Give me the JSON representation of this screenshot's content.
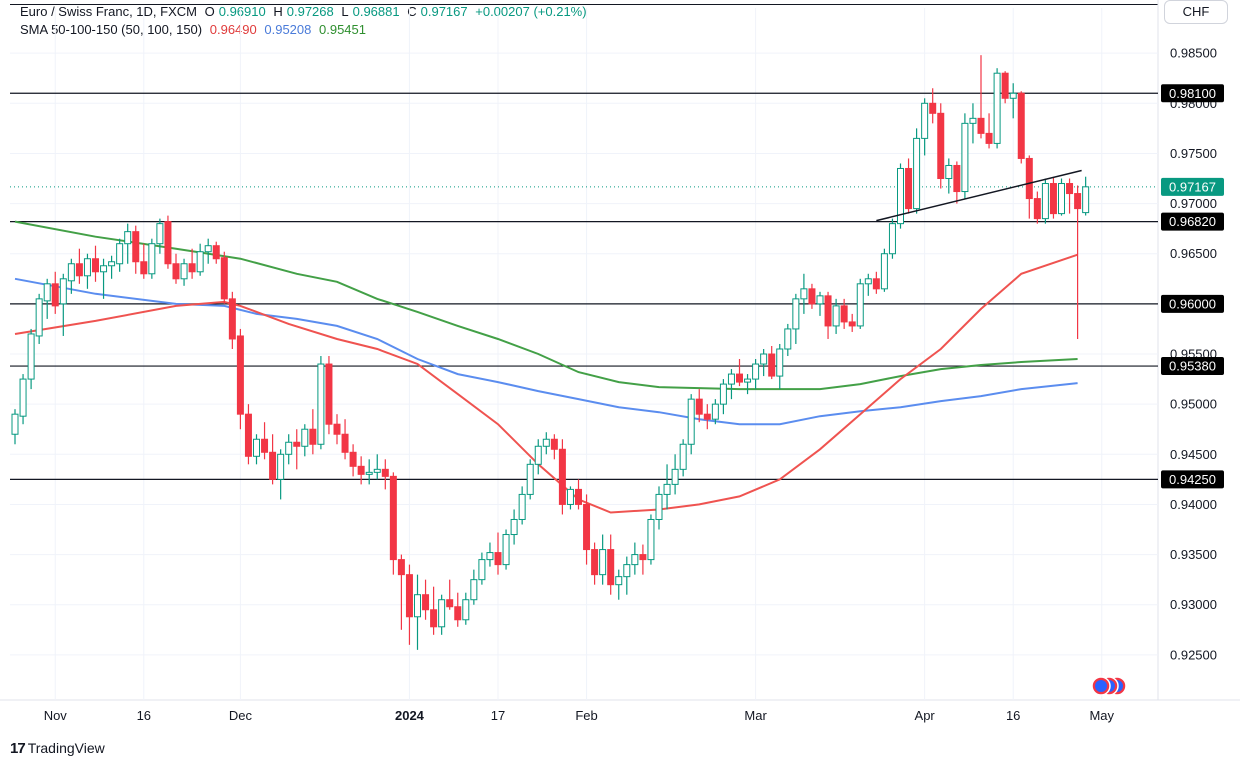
{
  "header": {
    "symbol": "Euro / Swiss Franc, 1D, FXCM",
    "open_label": "O",
    "open": "0.96910",
    "high_label": "H",
    "high": "0.97268",
    "low_label": "L",
    "low": "0.96881",
    "close_label": "C",
    "close": "0.97167",
    "change": "+0.00207 (+0.21%)",
    "sma_label": "SMA 50-100-150 (50, 100, 150)",
    "sma50": "0.96490",
    "sma100": "0.95208",
    "sma150": "0.95451"
  },
  "currency": "CHF",
  "brand": {
    "logo": "17",
    "name": "TradingView"
  },
  "colors": {
    "up": "#089981",
    "down": "#f23645",
    "sma50": "#ef5350",
    "sma100": "#5b8def",
    "sma150": "#43a047",
    "grid": "#f0f3fa",
    "line": "#131722"
  },
  "chart_data": {
    "type": "candlestick",
    "title": "Euro / Swiss Franc, 1D, FXCM",
    "ylim": [
      0.9205,
      0.9903
    ],
    "y_ticks": [
      "0.98500",
      "0.98000",
      "0.97500",
      "0.97000",
      "0.96500",
      "0.96000",
      "0.95500",
      "0.95000",
      "0.94500",
      "0.94000",
      "0.93500",
      "0.93000",
      "0.92500"
    ],
    "y_tick_values": [
      0.985,
      0.98,
      0.975,
      0.97,
      0.965,
      0.96,
      0.955,
      0.95,
      0.945,
      0.94,
      0.935,
      0.93,
      0.925
    ],
    "x_ticks": [
      {
        "label": "Nov",
        "bar": 5,
        "bold": false
      },
      {
        "label": "16",
        "bar": 16,
        "bold": false
      },
      {
        "label": "Dec",
        "bar": 28,
        "bold": false
      },
      {
        "label": "2024",
        "bar": 49,
        "bold": true
      },
      {
        "label": "17",
        "bar": 60,
        "bold": false
      },
      {
        "label": "Feb",
        "bar": 71,
        "bold": false
      },
      {
        "label": "Mar",
        "bar": 92,
        "bold": false
      },
      {
        "label": "Apr",
        "bar": 113,
        "bold": false
      },
      {
        "label": "16",
        "bar": 124,
        "bold": false
      },
      {
        "label": "May",
        "bar": 135,
        "bold": false
      }
    ],
    "horizontal_levels": [
      {
        "value": 0.981,
        "label": "0.98100"
      },
      {
        "value": 0.9682,
        "label": "0.96820"
      },
      {
        "value": 0.96,
        "label": "0.96000"
      },
      {
        "value": 0.9538,
        "label": "0.95380"
      },
      {
        "value": 0.9425,
        "label": "0.94250"
      }
    ],
    "last_price": {
      "value": 0.97167,
      "label": "0.97167"
    },
    "trendline": {
      "start_bar": 107,
      "start_price": 0.9683,
      "end_bar": 132.5,
      "end_price": 0.9733
    },
    "candles_ohlc": [
      [
        0.947,
        0.9495,
        0.946,
        0.949
      ],
      [
        0.9488,
        0.953,
        0.948,
        0.9525
      ],
      [
        0.9525,
        0.9575,
        0.9515,
        0.957
      ],
      [
        0.9568,
        0.961,
        0.956,
        0.9605
      ],
      [
        0.9603,
        0.9625,
        0.9585,
        0.962
      ],
      [
        0.962,
        0.9632,
        0.959,
        0.9598
      ],
      [
        0.96,
        0.963,
        0.9568,
        0.9625
      ],
      [
        0.9623,
        0.9645,
        0.961,
        0.964
      ],
      [
        0.964,
        0.9655,
        0.962,
        0.9628
      ],
      [
        0.9628,
        0.965,
        0.9615,
        0.9645
      ],
      [
        0.9645,
        0.9658,
        0.9622,
        0.9632
      ],
      [
        0.9632,
        0.9645,
        0.9605,
        0.9638
      ],
      [
        0.9638,
        0.9648,
        0.9625,
        0.9642
      ],
      [
        0.964,
        0.9665,
        0.9632,
        0.966
      ],
      [
        0.966,
        0.968,
        0.964,
        0.9672
      ],
      [
        0.9672,
        0.9678,
        0.963,
        0.9642
      ],
      [
        0.9642,
        0.966,
        0.9625,
        0.963
      ],
      [
        0.963,
        0.9665,
        0.9625,
        0.966
      ],
      [
        0.966,
        0.9685,
        0.965,
        0.968
      ],
      [
        0.9682,
        0.9688,
        0.9635,
        0.964
      ],
      [
        0.964,
        0.965,
        0.962,
        0.9625
      ],
      [
        0.9625,
        0.9645,
        0.9618,
        0.964
      ],
      [
        0.964,
        0.9655,
        0.9625,
        0.9632
      ],
      [
        0.9632,
        0.966,
        0.9628,
        0.9652
      ],
      [
        0.9652,
        0.9665,
        0.964,
        0.9658
      ],
      [
        0.9658,
        0.9662,
        0.964,
        0.9645
      ],
      [
        0.9646,
        0.9652,
        0.96,
        0.9605
      ],
      [
        0.9605,
        0.9612,
        0.9555,
        0.9565
      ],
      [
        0.9568,
        0.9575,
        0.9475,
        0.949
      ],
      [
        0.949,
        0.95,
        0.944,
        0.9448
      ],
      [
        0.9448,
        0.947,
        0.944,
        0.9465
      ],
      [
        0.9465,
        0.9482,
        0.9445,
        0.9452
      ],
      [
        0.9452,
        0.947,
        0.942,
        0.9425
      ],
      [
        0.9425,
        0.9455,
        0.9405,
        0.945
      ],
      [
        0.945,
        0.947,
        0.944,
        0.9462
      ],
      [
        0.9462,
        0.9475,
        0.9435,
        0.9458
      ],
      [
        0.9458,
        0.948,
        0.9448,
        0.9475
      ],
      [
        0.9475,
        0.9495,
        0.945,
        0.946
      ],
      [
        0.946,
        0.9548,
        0.9455,
        0.954
      ],
      [
        0.954,
        0.9548,
        0.947,
        0.948
      ],
      [
        0.948,
        0.949,
        0.946,
        0.947
      ],
      [
        0.947,
        0.9485,
        0.9445,
        0.9452
      ],
      [
        0.9452,
        0.946,
        0.9428,
        0.9438
      ],
      [
        0.9438,
        0.9448,
        0.942,
        0.943
      ],
      [
        0.943,
        0.9445,
        0.942,
        0.9432
      ],
      [
        0.9432,
        0.945,
        0.9425,
        0.9435
      ],
      [
        0.9435,
        0.9445,
        0.9415,
        0.9428
      ],
      [
        0.9428,
        0.9432,
        0.933,
        0.9345
      ],
      [
        0.9345,
        0.935,
        0.9275,
        0.933
      ],
      [
        0.933,
        0.934,
        0.926,
        0.9288
      ],
      [
        0.9288,
        0.933,
        0.9255,
        0.931
      ],
      [
        0.931,
        0.9325,
        0.9285,
        0.9295
      ],
      [
        0.9295,
        0.9318,
        0.927,
        0.9278
      ],
      [
        0.9278,
        0.931,
        0.927,
        0.9305
      ],
      [
        0.9305,
        0.9325,
        0.9295,
        0.9298
      ],
      [
        0.9298,
        0.9312,
        0.9278,
        0.9285
      ],
      [
        0.9285,
        0.9312,
        0.928,
        0.9305
      ],
      [
        0.9305,
        0.9335,
        0.93,
        0.9325
      ],
      [
        0.9325,
        0.9352,
        0.932,
        0.9345
      ],
      [
        0.9345,
        0.9362,
        0.9338,
        0.9352
      ],
      [
        0.9352,
        0.9372,
        0.933,
        0.934
      ],
      [
        0.934,
        0.9375,
        0.9335,
        0.937
      ],
      [
        0.937,
        0.9395,
        0.936,
        0.9385
      ],
      [
        0.9385,
        0.9418,
        0.938,
        0.941
      ],
      [
        0.941,
        0.9445,
        0.9405,
        0.944
      ],
      [
        0.944,
        0.9465,
        0.943,
        0.9458
      ],
      [
        0.9458,
        0.9472,
        0.945,
        0.9465
      ],
      [
        0.9465,
        0.947,
        0.9445,
        0.9455
      ],
      [
        0.9455,
        0.9465,
        0.939,
        0.94
      ],
      [
        0.94,
        0.9418,
        0.9395,
        0.9415
      ],
      [
        0.9415,
        0.9425,
        0.9395,
        0.94
      ],
      [
        0.94,
        0.941,
        0.934,
        0.9355
      ],
      [
        0.9355,
        0.9362,
        0.932,
        0.933
      ],
      [
        0.933,
        0.937,
        0.932,
        0.9355
      ],
      [
        0.9355,
        0.937,
        0.931,
        0.932
      ],
      [
        0.932,
        0.9335,
        0.9305,
        0.9328
      ],
      [
        0.9328,
        0.9348,
        0.931,
        0.934
      ],
      [
        0.934,
        0.9362,
        0.933,
        0.935
      ],
      [
        0.935,
        0.936,
        0.933,
        0.9345
      ],
      [
        0.9345,
        0.939,
        0.934,
        0.9385
      ],
      [
        0.9385,
        0.9418,
        0.9375,
        0.941
      ],
      [
        0.941,
        0.944,
        0.9395,
        0.942
      ],
      [
        0.942,
        0.945,
        0.941,
        0.9435
      ],
      [
        0.9435,
        0.9465,
        0.9428,
        0.946
      ],
      [
        0.946,
        0.951,
        0.945,
        0.9505
      ],
      [
        0.9505,
        0.9515,
        0.9482,
        0.949
      ],
      [
        0.949,
        0.95,
        0.9475,
        0.9485
      ],
      [
        0.9485,
        0.9505,
        0.948,
        0.95
      ],
      [
        0.95,
        0.9525,
        0.949,
        0.952
      ],
      [
        0.952,
        0.9535,
        0.9505,
        0.953
      ],
      [
        0.953,
        0.9545,
        0.9518,
        0.9522
      ],
      [
        0.9522,
        0.953,
        0.951,
        0.9525
      ],
      [
        0.9525,
        0.9545,
        0.9515,
        0.954
      ],
      [
        0.954,
        0.9555,
        0.9528,
        0.955
      ],
      [
        0.955,
        0.9558,
        0.9525,
        0.9528
      ],
      [
        0.9528,
        0.956,
        0.9515,
        0.9555
      ],
      [
        0.9555,
        0.958,
        0.9548,
        0.9575
      ],
      [
        0.9575,
        0.961,
        0.956,
        0.9605
      ],
      [
        0.9605,
        0.963,
        0.959,
        0.9615
      ],
      [
        0.9615,
        0.962,
        0.9595,
        0.96
      ],
      [
        0.96,
        0.9612,
        0.9588,
        0.9608
      ],
      [
        0.9608,
        0.9612,
        0.9565,
        0.9578
      ],
      [
        0.9578,
        0.9605,
        0.957,
        0.9598
      ],
      [
        0.9598,
        0.9605,
        0.9575,
        0.9582
      ],
      [
        0.9582,
        0.959,
        0.9572,
        0.9578
      ],
      [
        0.9578,
        0.9625,
        0.9575,
        0.962
      ],
      [
        0.962,
        0.963,
        0.9608,
        0.9625
      ],
      [
        0.9625,
        0.9632,
        0.961,
        0.9615
      ],
      [
        0.9615,
        0.9655,
        0.9612,
        0.965
      ],
      [
        0.965,
        0.9685,
        0.9645,
        0.968
      ],
      [
        0.968,
        0.974,
        0.9675,
        0.9735
      ],
      [
        0.9735,
        0.9745,
        0.969,
        0.9695
      ],
      [
        0.9695,
        0.9775,
        0.969,
        0.9765
      ],
      [
        0.9765,
        0.9805,
        0.9748,
        0.98
      ],
      [
        0.98,
        0.9815,
        0.978,
        0.979
      ],
      [
        0.979,
        0.98,
        0.9715,
        0.9725
      ],
      [
        0.9725,
        0.9745,
        0.971,
        0.9738
      ],
      [
        0.9738,
        0.9742,
        0.97,
        0.9712
      ],
      [
        0.9712,
        0.979,
        0.9705,
        0.978
      ],
      [
        0.978,
        0.98,
        0.976,
        0.9785
      ],
      [
        0.9785,
        0.9848,
        0.9765,
        0.977
      ],
      [
        0.977,
        0.979,
        0.9755,
        0.976
      ],
      [
        0.976,
        0.9835,
        0.9755,
        0.983
      ],
      [
        0.983,
        0.9832,
        0.98,
        0.9805
      ],
      [
        0.9805,
        0.982,
        0.9785,
        0.981
      ],
      [
        0.981,
        0.9812,
        0.974,
        0.9745
      ],
      [
        0.9745,
        0.9748,
        0.9685,
        0.9705
      ],
      [
        0.9705,
        0.9712,
        0.968,
        0.9685
      ],
      [
        0.9685,
        0.9725,
        0.968,
        0.972
      ],
      [
        0.972,
        0.9726,
        0.9685,
        0.969
      ],
      [
        0.969,
        0.9725,
        0.9688,
        0.972
      ],
      [
        0.972,
        0.9725,
        0.969,
        0.971
      ],
      [
        0.971,
        0.9718,
        0.9565,
        0.9695
      ],
      [
        0.9691,
        0.97268,
        0.96881,
        0.97167
      ]
    ],
    "sma50": [
      [
        0,
        0.957
      ],
      [
        10,
        0.9583
      ],
      [
        20,
        0.9598
      ],
      [
        26,
        0.9602
      ],
      [
        28,
        0.9598
      ],
      [
        34,
        0.958
      ],
      [
        40,
        0.9565
      ],
      [
        45,
        0.9555
      ],
      [
        50,
        0.954
      ],
      [
        55,
        0.951
      ],
      [
        60,
        0.948
      ],
      [
        65,
        0.944
      ],
      [
        70,
        0.9405
      ],
      [
        74,
        0.9392
      ],
      [
        80,
        0.9395
      ],
      [
        85,
        0.94
      ],
      [
        90,
        0.9408
      ],
      [
        95,
        0.9425
      ],
      [
        100,
        0.9455
      ],
      [
        105,
        0.949
      ],
      [
        110,
        0.9525
      ],
      [
        115,
        0.9555
      ],
      [
        120,
        0.9595
      ],
      [
        125,
        0.963
      ],
      [
        132,
        0.9649
      ]
    ],
    "sma100": [
      [
        0,
        0.9625
      ],
      [
        10,
        0.961
      ],
      [
        20,
        0.96
      ],
      [
        26,
        0.9598
      ],
      [
        30,
        0.959
      ],
      [
        35,
        0.9585
      ],
      [
        40,
        0.9578
      ],
      [
        45,
        0.9565
      ],
      [
        50,
        0.9545
      ],
      [
        55,
        0.953
      ],
      [
        60,
        0.9522
      ],
      [
        65,
        0.9513
      ],
      [
        70,
        0.9505
      ],
      [
        75,
        0.9497
      ],
      [
        80,
        0.9492
      ],
      [
        85,
        0.9485
      ],
      [
        90,
        0.948
      ],
      [
        95,
        0.948
      ],
      [
        100,
        0.9488
      ],
      [
        105,
        0.9493
      ],
      [
        110,
        0.9497
      ],
      [
        115,
        0.9503
      ],
      [
        120,
        0.9508
      ],
      [
        125,
        0.9515
      ],
      [
        132,
        0.9521
      ]
    ],
    "sma150": [
      [
        0,
        0.9682
      ],
      [
        10,
        0.9667
      ],
      [
        20,
        0.9655
      ],
      [
        28,
        0.9645
      ],
      [
        35,
        0.963
      ],
      [
        40,
        0.9622
      ],
      [
        45,
        0.9605
      ],
      [
        50,
        0.9592
      ],
      [
        55,
        0.9578
      ],
      [
        60,
        0.9565
      ],
      [
        65,
        0.955
      ],
      [
        70,
        0.9532
      ],
      [
        75,
        0.9522
      ],
      [
        80,
        0.9517
      ],
      [
        85,
        0.9516
      ],
      [
        90,
        0.9515
      ],
      [
        95,
        0.9515
      ],
      [
        100,
        0.9515
      ],
      [
        105,
        0.952
      ],
      [
        110,
        0.9528
      ],
      [
        115,
        0.9535
      ],
      [
        120,
        0.9539
      ],
      [
        125,
        0.9542
      ],
      [
        132,
        0.9545
      ]
    ]
  }
}
